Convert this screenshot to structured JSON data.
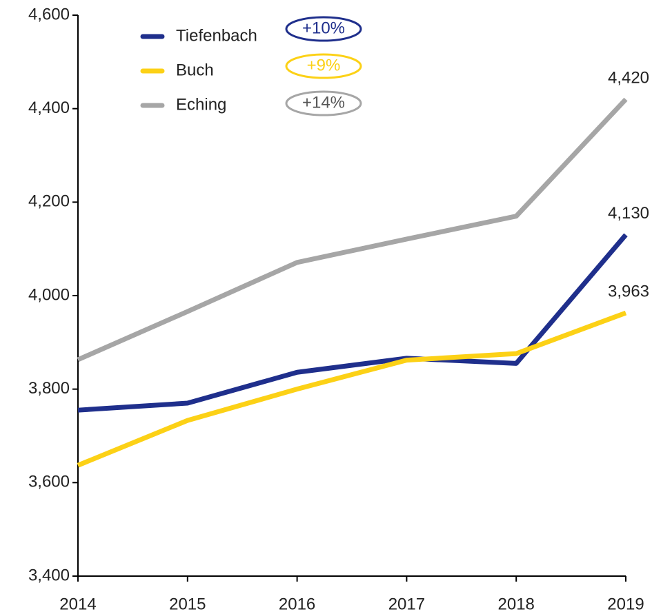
{
  "chart_data": {
    "type": "line",
    "categories": [
      "2014",
      "2015",
      "2016",
      "2017",
      "2018",
      "2019"
    ],
    "series": [
      {
        "name": "Tiefenbach",
        "color": "#1f2f8c",
        "badge": "+10%",
        "values": [
          3755,
          3770,
          3836,
          3866,
          3855,
          4130
        ],
        "value_labels": [
          null,
          null,
          null,
          null,
          null,
          "4,130"
        ]
      },
      {
        "name": "Buch",
        "color": "#fcd116",
        "badge": "+9%",
        "values": [
          3637,
          3733,
          3800,
          3862,
          3876,
          3963
        ],
        "value_labels": [
          null,
          null,
          null,
          null,
          null,
          "3,963"
        ]
      },
      {
        "name": "Eching",
        "color": "#a6a6a6",
        "badge": "+14%",
        "values": [
          3863,
          3966,
          4071,
          4121,
          4170,
          4420
        ],
        "value_labels": [
          null,
          null,
          null,
          null,
          null,
          "4,420"
        ]
      }
    ],
    "ylim": [
      3400,
      4600
    ],
    "yticks": [
      {
        "value": 3400,
        "label": "3,400"
      },
      {
        "value": 3600,
        "label": "3,600"
      },
      {
        "value": 3800,
        "label": "3,800"
      },
      {
        "value": 4000,
        "label": "4,000"
      },
      {
        "value": 4200,
        "label": "4,200"
      },
      {
        "value": 4400,
        "label": "4,400"
      },
      {
        "value": 4600,
        "label": "4,600"
      }
    ],
    "grid": false,
    "legend": "top-left"
  }
}
